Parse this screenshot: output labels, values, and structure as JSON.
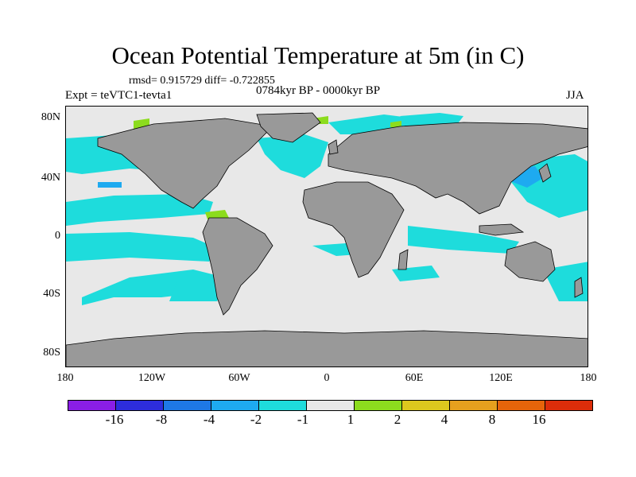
{
  "title": "Ocean Potential Temperature at 5m (in C)",
  "stats": "rmsd= 0.915729 diff= -0.722855",
  "period": "0784kyr BP - 0000kyr BP",
  "experiment": "Expt = teVTC1-tevta1",
  "season": "JJA",
  "lat_labels": [
    "80N",
    "40N",
    "0",
    "40S",
    "80S"
  ],
  "lon_labels": [
    "180",
    "120W",
    "60W",
    "0",
    "60E",
    "120E",
    "180"
  ],
  "colorbar": {
    "colors": [
      "#8a1ee6",
      "#2d2ddc",
      "#1e78e6",
      "#1eaaf0",
      "#1edcdc",
      "#e8e8e8",
      "#8cdc1e",
      "#dcc81e",
      "#e6a01e",
      "#e6640a",
      "#dc2d0a"
    ],
    "labels": [
      "-16",
      "-8",
      "-4",
      "-2",
      "-1",
      "1",
      "2",
      "4",
      "8",
      "16"
    ]
  },
  "colors": {
    "land": "#999999",
    "ocean_neutral": "#e8e8e8",
    "cyan": "#1edcdc",
    "blue": "#1eaaf0",
    "green": "#8cdc1e"
  }
}
